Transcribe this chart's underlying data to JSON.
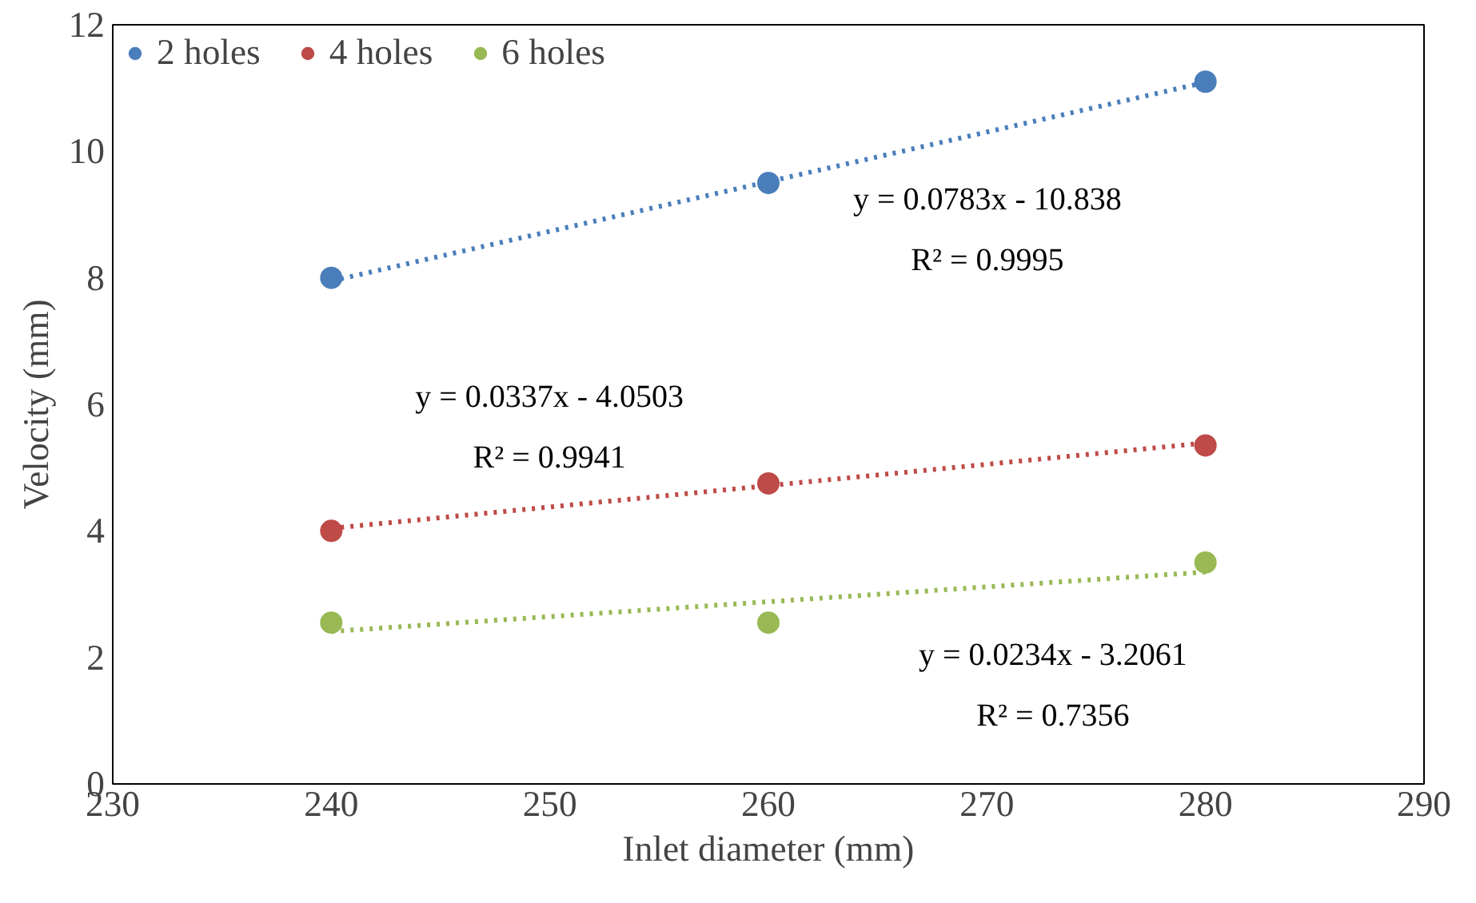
{
  "chart_data": {
    "type": "scatter",
    "xlabel": "Inlet diameter (mm)",
    "ylabel": "Velocity (mm)",
    "xlim": [
      230,
      290
    ],
    "xticks": [
      230,
      240,
      250,
      260,
      270,
      280,
      290
    ],
    "ylim": [
      0,
      12
    ],
    "yticks": [
      0,
      2,
      4,
      6,
      8,
      10,
      12
    ],
    "grid": false,
    "legend": "top left",
    "marker": "circle",
    "series": [
      {
        "name": "2 holes",
        "color": "#4a7ebb",
        "x": [
          240,
          260,
          280
        ],
        "values": [
          8.0,
          9.5,
          11.1
        ]
      },
      {
        "name": "4 holes",
        "color": "#be4b48",
        "x": [
          240,
          260,
          280
        ],
        "values": [
          4.0,
          4.75,
          5.35
        ]
      },
      {
        "name": "6 holes",
        "color": "#98b954",
        "x": [
          240,
          260,
          280
        ],
        "values": [
          2.55,
          2.55,
          3.5
        ]
      },
      {
        "type": "line",
        "color": "#4a7ebb",
        "x": [
          240,
          280
        ],
        "values": [
          7.95,
          11.09
        ],
        "line_style": "dotted",
        "marker": "none"
      },
      {
        "type": "line",
        "color": "#be4b48",
        "x": [
          240,
          280
        ],
        "values": [
          4.04,
          5.39
        ],
        "line_style": "dotted",
        "marker": "none"
      },
      {
        "type": "line",
        "color": "#98b954",
        "x": [
          240,
          280
        ],
        "values": [
          2.41,
          3.35
        ],
        "line_style": "dotted",
        "marker": "none"
      }
    ],
    "annotations": [
      "y = 0.0783x - 10.838",
      "R² = 0.9995",
      "y = 0.0337x - 4.0503",
      "R² = 0.9941",
      "y = 0.0234x - 3.2061",
      "R² = 0.7356"
    ]
  }
}
